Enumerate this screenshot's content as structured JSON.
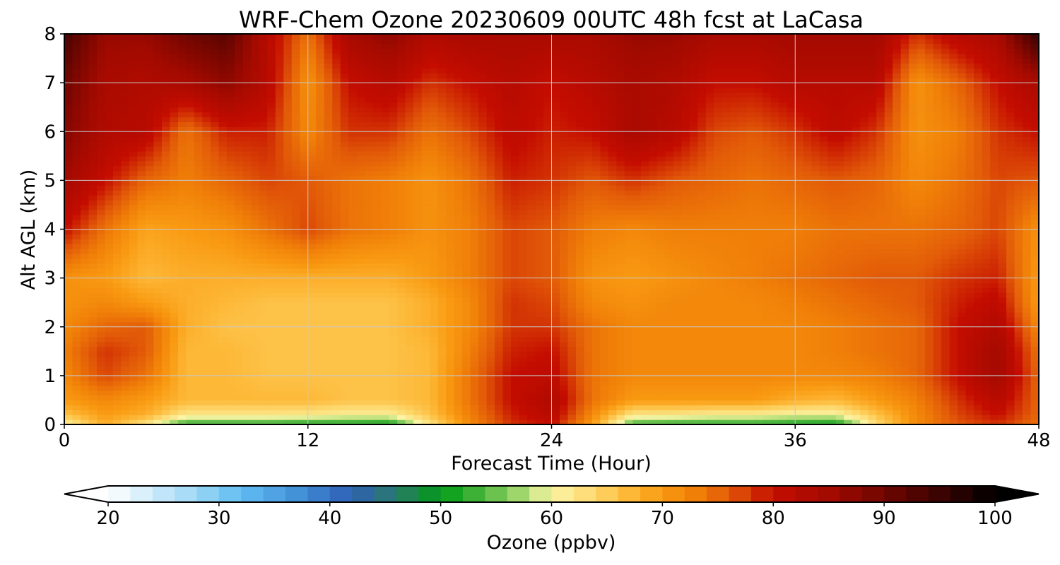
{
  "chart_data": {
    "type": "heatmap",
    "title": "WRF-Chem Ozone  20230609 00UTC 48h fcst at LaCasa",
    "xlabel": "Forecast Time (Hour)",
    "ylabel": "Alt AGL (km)",
    "xlim": [
      0,
      48
    ],
    "ylim": [
      0,
      8
    ],
    "xticks": [
      0,
      12,
      24,
      36,
      48
    ],
    "yticks": [
      0,
      1,
      2,
      3,
      4,
      5,
      6,
      7,
      8
    ],
    "grid": true,
    "x": [
      0,
      2,
      4,
      6,
      8,
      10,
      12,
      14,
      16,
      18,
      20,
      22,
      24,
      26,
      28,
      30,
      32,
      34,
      36,
      38,
      40,
      42,
      44,
      46,
      48
    ],
    "y": [
      0,
      0.2,
      0.5,
      1,
      1.5,
      2,
      2.5,
      3,
      4,
      5,
      6,
      7,
      8
    ],
    "z": [
      [
        60,
        68,
        62,
        52,
        52,
        52,
        51,
        51,
        50,
        62,
        72,
        78,
        80,
        70,
        53,
        52,
        52,
        52,
        51,
        50,
        63,
        72,
        76,
        78,
        74
      ],
      [
        66,
        70,
        68,
        62,
        62,
        62,
        62,
        61,
        61,
        66,
        73,
        79,
        82,
        72,
        62,
        62,
        61,
        61,
        60,
        60,
        66,
        72,
        77,
        80,
        75
      ],
      [
        70,
        72,
        70,
        67,
        67,
        67,
        67,
        66,
        66,
        67,
        74,
        80,
        83,
        74,
        70,
        70,
        70,
        70,
        68,
        67,
        70,
        73,
        78,
        82,
        75
      ],
      [
        72,
        77,
        74,
        67,
        67,
        66,
        66,
        66,
        66,
        67,
        74,
        80,
        81,
        74,
        72,
        72,
        72,
        72,
        72,
        72,
        73,
        75,
        80,
        85,
        75
      ],
      [
        73,
        78,
        76,
        67,
        67,
        66,
        66,
        66,
        66,
        67,
        73,
        79,
        80,
        74,
        72,
        72,
        72,
        72,
        72,
        73,
        74,
        75,
        80,
        85,
        74
      ],
      [
        72,
        75,
        76,
        68,
        66,
        66,
        66,
        66,
        66,
        68,
        72,
        78,
        78,
        74,
        72,
        72,
        72,
        72,
        72,
        73,
        74,
        75,
        80,
        83,
        72
      ],
      [
        71,
        72,
        70,
        68,
        67,
        66,
        66,
        66,
        66,
        68,
        72,
        78,
        77,
        72,
        71,
        72,
        72,
        72,
        73,
        74,
        75,
        76,
        79,
        81,
        70
      ],
      [
        71,
        70,
        67,
        68,
        68,
        68,
        68,
        68,
        68,
        70,
        73,
        77,
        76,
        71,
        70,
        71,
        72,
        73,
        74,
        75,
        76,
        76,
        78,
        79,
        70
      ],
      [
        80,
        74,
        69,
        70,
        71,
        74,
        77,
        74,
        73,
        71,
        73,
        77,
        76,
        73,
        72,
        73,
        73,
        73,
        73,
        74,
        74,
        74,
        75,
        77,
        71
      ],
      [
        85,
        80,
        75,
        73,
        75,
        77,
        76,
        74,
        73,
        71,
        74,
        79,
        78,
        76,
        78,
        76,
        75,
        74,
        75,
        76,
        75,
        72,
        74,
        77,
        76
      ],
      [
        88,
        83,
        82,
        74,
        79,
        79,
        72,
        78,
        78,
        74,
        77,
        81,
        79,
        80,
        84,
        82,
        77,
        76,
        78,
        81,
        78,
        71,
        73,
        78,
        80
      ],
      [
        90,
        84,
        83,
        84,
        87,
        82,
        71,
        80,
        82,
        78,
        80,
        82,
        80,
        82,
        84,
        83,
        80,
        80,
        82,
        82,
        82,
        71,
        75,
        80,
        84
      ],
      [
        94,
        86,
        86,
        90,
        92,
        82,
        74,
        84,
        87,
        83,
        84,
        84,
        84,
        84,
        86,
        86,
        84,
        84,
        85,
        85,
        85,
        78,
        82,
        84,
        96
      ]
    ],
    "colorbar": {
      "label": "Ozone  (ppbv)",
      "min": 20,
      "max": 100,
      "ticks": [
        20,
        30,
        40,
        50,
        60,
        70,
        80,
        90,
        100
      ],
      "extend": "both",
      "stops": [
        {
          "v": 20,
          "c": "#ffffff"
        },
        {
          "v": 27,
          "c": "#a9dcf6"
        },
        {
          "v": 32,
          "c": "#61bdf2"
        },
        {
          "v": 38,
          "c": "#3d88d2"
        },
        {
          "v": 42,
          "c": "#2f5fb5"
        },
        {
          "v": 46,
          "c": "#2a7a6a"
        },
        {
          "v": 50,
          "c": "#009a16"
        },
        {
          "v": 54,
          "c": "#51b841"
        },
        {
          "v": 58,
          "c": "#b9e07a"
        },
        {
          "v": 60,
          "c": "#fcf6a8"
        },
        {
          "v": 64,
          "c": "#fdd66a"
        },
        {
          "v": 67,
          "c": "#fdb837"
        },
        {
          "v": 70,
          "c": "#f99a12"
        },
        {
          "v": 73,
          "c": "#f07f08"
        },
        {
          "v": 76,
          "c": "#e25a08"
        },
        {
          "v": 80,
          "c": "#c40c00"
        },
        {
          "v": 85,
          "c": "#a30a00"
        },
        {
          "v": 90,
          "c": "#700600"
        },
        {
          "v": 95,
          "c": "#3b0301"
        },
        {
          "v": 100,
          "c": "#000000"
        }
      ]
    }
  }
}
